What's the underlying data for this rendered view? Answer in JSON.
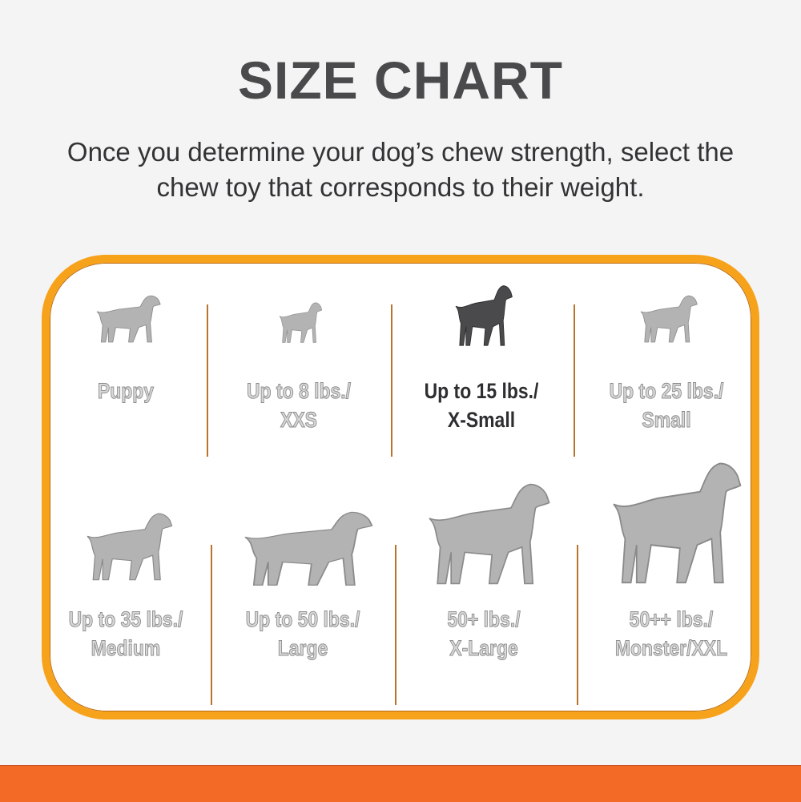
{
  "title": "SIZE CHART",
  "subtitle_line1": "Once you determine your dog’s chew strength, select the",
  "subtitle_line2": "chew toy that corresponds to their weight.",
  "colors": {
    "border": "#f7a21b",
    "band": "#f26a25",
    "inactive_dog": "#b3b3b3",
    "active_dog": "#4a4a4c",
    "divider": "#b8742a"
  },
  "sizes": [
    {
      "line1": "Puppy",
      "line2": "",
      "icon": "puppy-icon",
      "active": false
    },
    {
      "line1": "Up to 8 lbs./",
      "line2": "XXS",
      "icon": "chihuahua-icon",
      "active": false
    },
    {
      "line1": "Up to 15 lbs./",
      "line2": "X-Small",
      "icon": "miniature-pinscher-icon",
      "active": true
    },
    {
      "line1": "Up to 25 lbs./",
      "line2": "Small",
      "icon": "terrier-icon",
      "active": false
    },
    {
      "line1": "Up to 35 lbs./",
      "line2": "Medium",
      "icon": "beagle-icon",
      "active": false
    },
    {
      "line1": "Up to 50 lbs./",
      "line2": "Large",
      "icon": "retriever-icon",
      "active": false
    },
    {
      "line1": "50+ lbs./",
      "line2": "X-Large",
      "icon": "shepherd-icon",
      "active": false
    },
    {
      "line1": "50++ lbs./",
      "line2": "Monster/XXL",
      "icon": "great-dane-icon",
      "active": false
    }
  ]
}
